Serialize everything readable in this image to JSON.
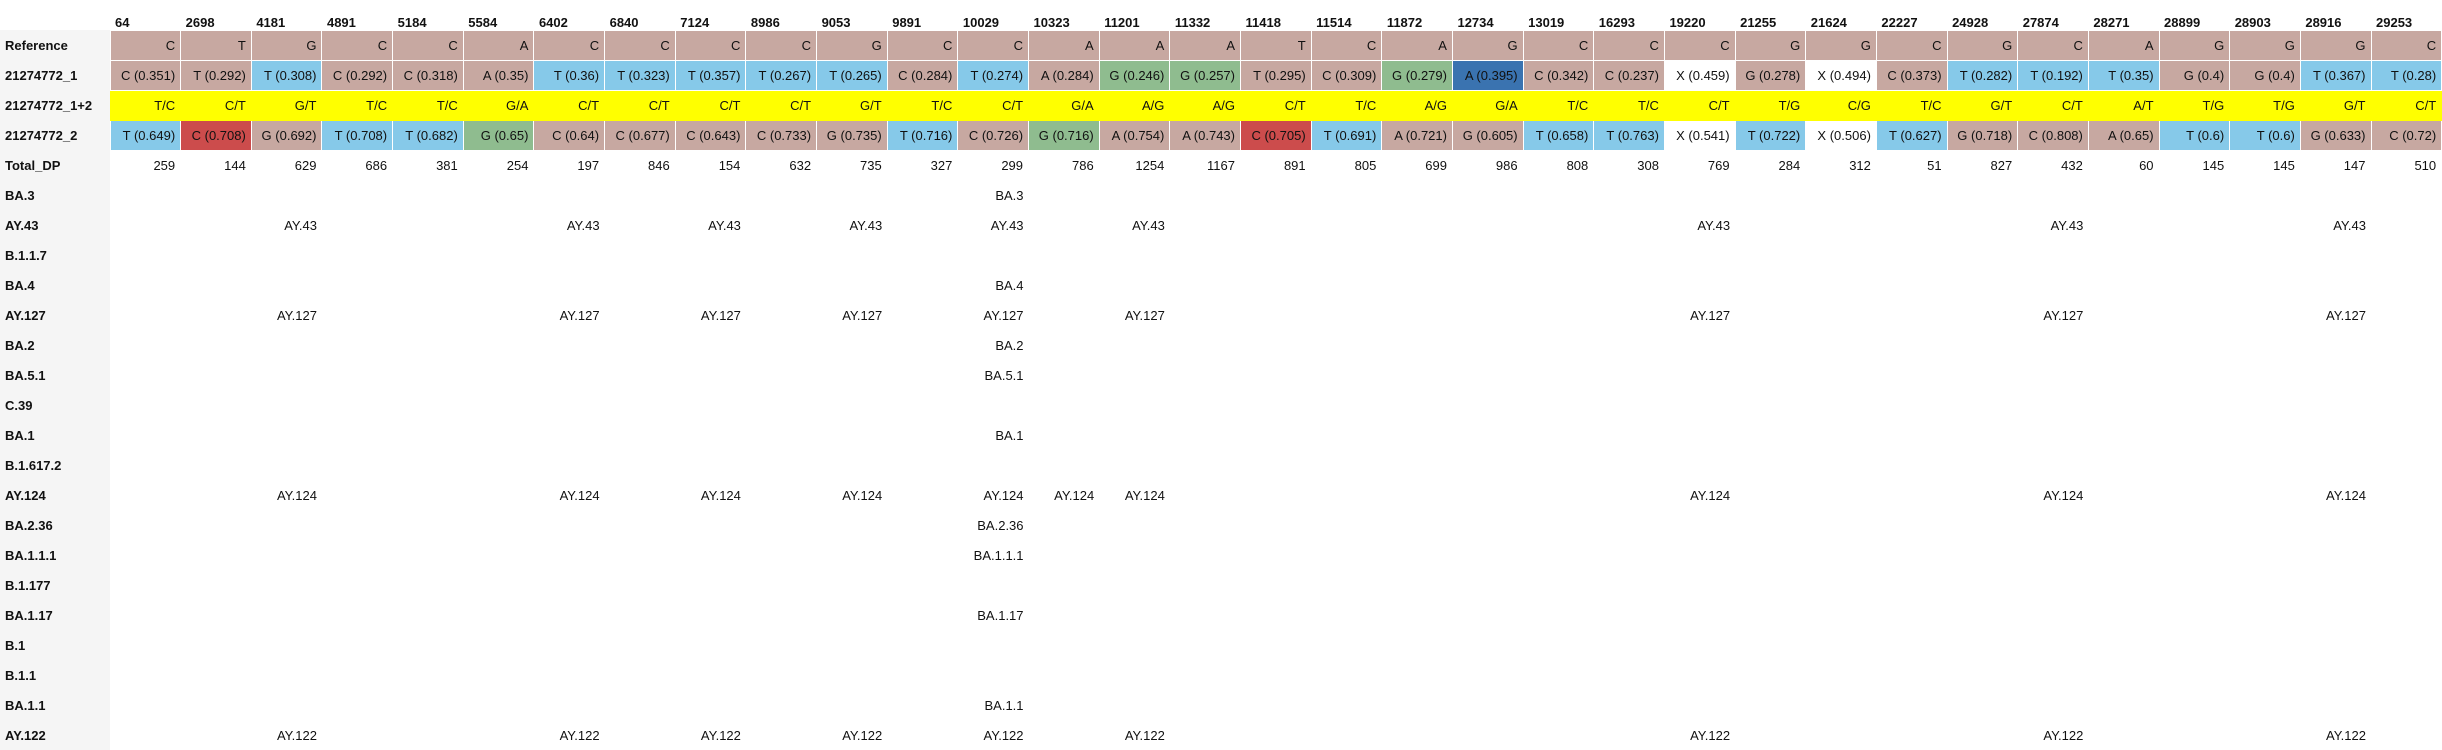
{
  "colors": {
    "reference": "#c7a8a1",
    "T": "#86c9e9",
    "G": "#8fbc8f",
    "A_high": "#3a73b0",
    "C_high": "#cc4c4c",
    "combined": "#ffff00",
    "X": "#ffffff",
    "row_label_bg": "#f5f5f5"
  },
  "positions": [
    "64",
    "2698",
    "4181",
    "4891",
    "5184",
    "5584",
    "6402",
    "6840",
    "7124",
    "8986",
    "9053",
    "9891",
    "10029",
    "10323",
    "11201",
    "11332",
    "11418",
    "11514",
    "11872",
    "12734",
    "13019",
    "16293",
    "19220",
    "21255",
    "21624",
    "22227",
    "24928",
    "27874",
    "28271",
    "28899",
    "28903",
    "28916",
    "29253"
  ],
  "rows": {
    "reference": {
      "label": "Reference",
      "cells": [
        {
          "t": "C",
          "c": "reference"
        },
        {
          "t": "T",
          "c": "reference"
        },
        {
          "t": "G",
          "c": "reference"
        },
        {
          "t": "C",
          "c": "reference"
        },
        {
          "t": "C",
          "c": "reference"
        },
        {
          "t": "A",
          "c": "reference"
        },
        {
          "t": "C",
          "c": "reference"
        },
        {
          "t": "C",
          "c": "reference"
        },
        {
          "t": "C",
          "c": "reference"
        },
        {
          "t": "C",
          "c": "reference"
        },
        {
          "t": "G",
          "c": "reference"
        },
        {
          "t": "C",
          "c": "reference"
        },
        {
          "t": "C",
          "c": "reference"
        },
        {
          "t": "A",
          "c": "reference"
        },
        {
          "t": "A",
          "c": "reference"
        },
        {
          "t": "A",
          "c": "reference"
        },
        {
          "t": "T",
          "c": "reference"
        },
        {
          "t": "C",
          "c": "reference"
        },
        {
          "t": "A",
          "c": "reference"
        },
        {
          "t": "G",
          "c": "reference"
        },
        {
          "t": "C",
          "c": "reference"
        },
        {
          "t": "C",
          "c": "reference"
        },
        {
          "t": "C",
          "c": "reference"
        },
        {
          "t": "G",
          "c": "reference"
        },
        {
          "t": "G",
          "c": "reference"
        },
        {
          "t": "C",
          "c": "reference"
        },
        {
          "t": "G",
          "c": "reference"
        },
        {
          "t": "C",
          "c": "reference"
        },
        {
          "t": "A",
          "c": "reference"
        },
        {
          "t": "G",
          "c": "reference"
        },
        {
          "t": "G",
          "c": "reference"
        },
        {
          "t": "G",
          "c": "reference"
        },
        {
          "t": "C",
          "c": "reference"
        }
      ]
    },
    "sample1": {
      "label": "21274772_1",
      "cells": [
        {
          "t": "C (0.351)",
          "c": "reference"
        },
        {
          "t": "T (0.292)",
          "c": "reference"
        },
        {
          "t": "T (0.308)",
          "c": "T"
        },
        {
          "t": "C (0.292)",
          "c": "reference"
        },
        {
          "t": "C (0.318)",
          "c": "reference"
        },
        {
          "t": "A (0.35)",
          "c": "reference"
        },
        {
          "t": "T (0.36)",
          "c": "T"
        },
        {
          "t": "T (0.323)",
          "c": "T"
        },
        {
          "t": "T (0.357)",
          "c": "T"
        },
        {
          "t": "T (0.267)",
          "c": "T"
        },
        {
          "t": "T (0.265)",
          "c": "T"
        },
        {
          "t": "C (0.284)",
          "c": "reference"
        },
        {
          "t": "T (0.274)",
          "c": "T"
        },
        {
          "t": "A (0.284)",
          "c": "reference"
        },
        {
          "t": "G (0.246)",
          "c": "G"
        },
        {
          "t": "G (0.257)",
          "c": "G"
        },
        {
          "t": "T (0.295)",
          "c": "reference"
        },
        {
          "t": "C (0.309)",
          "c": "reference"
        },
        {
          "t": "G (0.279)",
          "c": "G"
        },
        {
          "t": "A (0.395)",
          "c": "A_high"
        },
        {
          "t": "C (0.342)",
          "c": "reference"
        },
        {
          "t": "C (0.237)",
          "c": "reference"
        },
        {
          "t": "X (0.459)",
          "c": "X"
        },
        {
          "t": "G (0.278)",
          "c": "reference"
        },
        {
          "t": "X (0.494)",
          "c": "X"
        },
        {
          "t": "C (0.373)",
          "c": "reference"
        },
        {
          "t": "T (0.282)",
          "c": "T"
        },
        {
          "t": "T (0.192)",
          "c": "T"
        },
        {
          "t": "T (0.35)",
          "c": "T"
        },
        {
          "t": "G (0.4)",
          "c": "reference"
        },
        {
          "t": "G (0.4)",
          "c": "reference"
        },
        {
          "t": "T (0.367)",
          "c": "T"
        },
        {
          "t": "T (0.28)",
          "c": "T"
        }
      ]
    },
    "combined": {
      "label": "21274772_1+2",
      "cells": [
        "T/C",
        "C/T",
        "G/T",
        "T/C",
        "T/C",
        "G/A",
        "C/T",
        "C/T",
        "C/T",
        "C/T",
        "G/T",
        "T/C",
        "C/T",
        "G/A",
        "A/G",
        "A/G",
        "C/T",
        "T/C",
        "A/G",
        "G/A",
        "T/C",
        "T/C",
        "C/T",
        "T/G",
        "C/G",
        "T/C",
        "G/T",
        "C/T",
        "A/T",
        "T/G",
        "T/G",
        "G/T",
        "C/T"
      ]
    },
    "sample2": {
      "label": "21274772_2",
      "cells": [
        {
          "t": "T (0.649)",
          "c": "T"
        },
        {
          "t": "C (0.708)",
          "c": "C_high"
        },
        {
          "t": "G (0.692)",
          "c": "reference"
        },
        {
          "t": "T (0.708)",
          "c": "T"
        },
        {
          "t": "T (0.682)",
          "c": "T"
        },
        {
          "t": "G (0.65)",
          "c": "G"
        },
        {
          "t": "C (0.64)",
          "c": "reference"
        },
        {
          "t": "C (0.677)",
          "c": "reference"
        },
        {
          "t": "C (0.643)",
          "c": "reference"
        },
        {
          "t": "C (0.733)",
          "c": "reference"
        },
        {
          "t": "G (0.735)",
          "c": "reference"
        },
        {
          "t": "T (0.716)",
          "c": "T"
        },
        {
          "t": "C (0.726)",
          "c": "reference"
        },
        {
          "t": "G (0.716)",
          "c": "G"
        },
        {
          "t": "A (0.754)",
          "c": "reference"
        },
        {
          "t": "A (0.743)",
          "c": "reference"
        },
        {
          "t": "C (0.705)",
          "c": "C_high"
        },
        {
          "t": "T (0.691)",
          "c": "T"
        },
        {
          "t": "A (0.721)",
          "c": "reference"
        },
        {
          "t": "G (0.605)",
          "c": "reference"
        },
        {
          "t": "T (0.658)",
          "c": "T"
        },
        {
          "t": "T (0.763)",
          "c": "T"
        },
        {
          "t": "X (0.541)",
          "c": "X"
        },
        {
          "t": "T (0.722)",
          "c": "T"
        },
        {
          "t": "X (0.506)",
          "c": "X"
        },
        {
          "t": "T (0.627)",
          "c": "T"
        },
        {
          "t": "G (0.718)",
          "c": "reference"
        },
        {
          "t": "C (0.808)",
          "c": "reference"
        },
        {
          "t": "A (0.65)",
          "c": "reference"
        },
        {
          "t": "T (0.6)",
          "c": "T"
        },
        {
          "t": "T (0.6)",
          "c": "T"
        },
        {
          "t": "G (0.633)",
          "c": "reference"
        },
        {
          "t": "C (0.72)",
          "c": "reference"
        }
      ]
    },
    "total_dp": {
      "label": "Total_DP",
      "cells": [
        "259",
        "144",
        "629",
        "686",
        "381",
        "254",
        "197",
        "846",
        "154",
        "632",
        "735",
        "327",
        "299",
        "786",
        "1254",
        "1167",
        "891",
        "805",
        "699",
        "986",
        "808",
        "308",
        "769",
        "284",
        "312",
        "51",
        "827",
        "432",
        "60",
        "145",
        "145",
        "147",
        "510"
      ]
    }
  },
  "lineages": [
    {
      "label": "BA.3",
      "cells": {
        "12": "BA.3"
      }
    },
    {
      "label": "AY.43",
      "cells": {
        "2": "AY.43",
        "6": "AY.43",
        "8": "AY.43",
        "10": "AY.43",
        "12": "AY.43",
        "14": "AY.43",
        "22": "AY.43",
        "27": "AY.43",
        "31": "AY.43"
      }
    },
    {
      "label": "B.1.1.7",
      "cells": {}
    },
    {
      "label": "BA.4",
      "cells": {
        "12": "BA.4"
      }
    },
    {
      "label": "AY.127",
      "cells": {
        "2": "AY.127",
        "6": "AY.127",
        "8": "AY.127",
        "10": "AY.127",
        "12": "AY.127",
        "14": "AY.127",
        "22": "AY.127",
        "27": "AY.127",
        "31": "AY.127"
      }
    },
    {
      "label": "BA.2",
      "cells": {
        "12": "BA.2"
      }
    },
    {
      "label": "BA.5.1",
      "cells": {
        "12": "BA.5.1"
      }
    },
    {
      "label": "C.39",
      "cells": {}
    },
    {
      "label": "BA.1",
      "cells": {
        "12": "BA.1"
      }
    },
    {
      "label": "B.1.617.2",
      "cells": {}
    },
    {
      "label": "AY.124",
      "cells": {
        "2": "AY.124",
        "6": "AY.124",
        "8": "AY.124",
        "10": "AY.124",
        "12": "AY.124",
        "13": "AY.124",
        "14": "AY.124",
        "22": "AY.124",
        "27": "AY.124",
        "31": "AY.124"
      }
    },
    {
      "label": "BA.2.36",
      "cells": {
        "12": "BA.2.36"
      }
    },
    {
      "label": "BA.1.1.1",
      "cells": {
        "12": "BA.1.1.1"
      }
    },
    {
      "label": "B.1.177",
      "cells": {}
    },
    {
      "label": "BA.1.17",
      "cells": {
        "12": "BA.1.17"
      }
    },
    {
      "label": "B.1",
      "cells": {}
    },
    {
      "label": "B.1.1",
      "cells": {}
    },
    {
      "label": "BA.1.1",
      "cells": {
        "12": "BA.1.1"
      }
    },
    {
      "label": "AY.122",
      "cells": {
        "2": "AY.122",
        "6": "AY.122",
        "8": "AY.122",
        "10": "AY.122",
        "12": "AY.122",
        "14": "AY.122",
        "22": "AY.122",
        "27": "AY.122",
        "31": "AY.122"
      }
    }
  ]
}
